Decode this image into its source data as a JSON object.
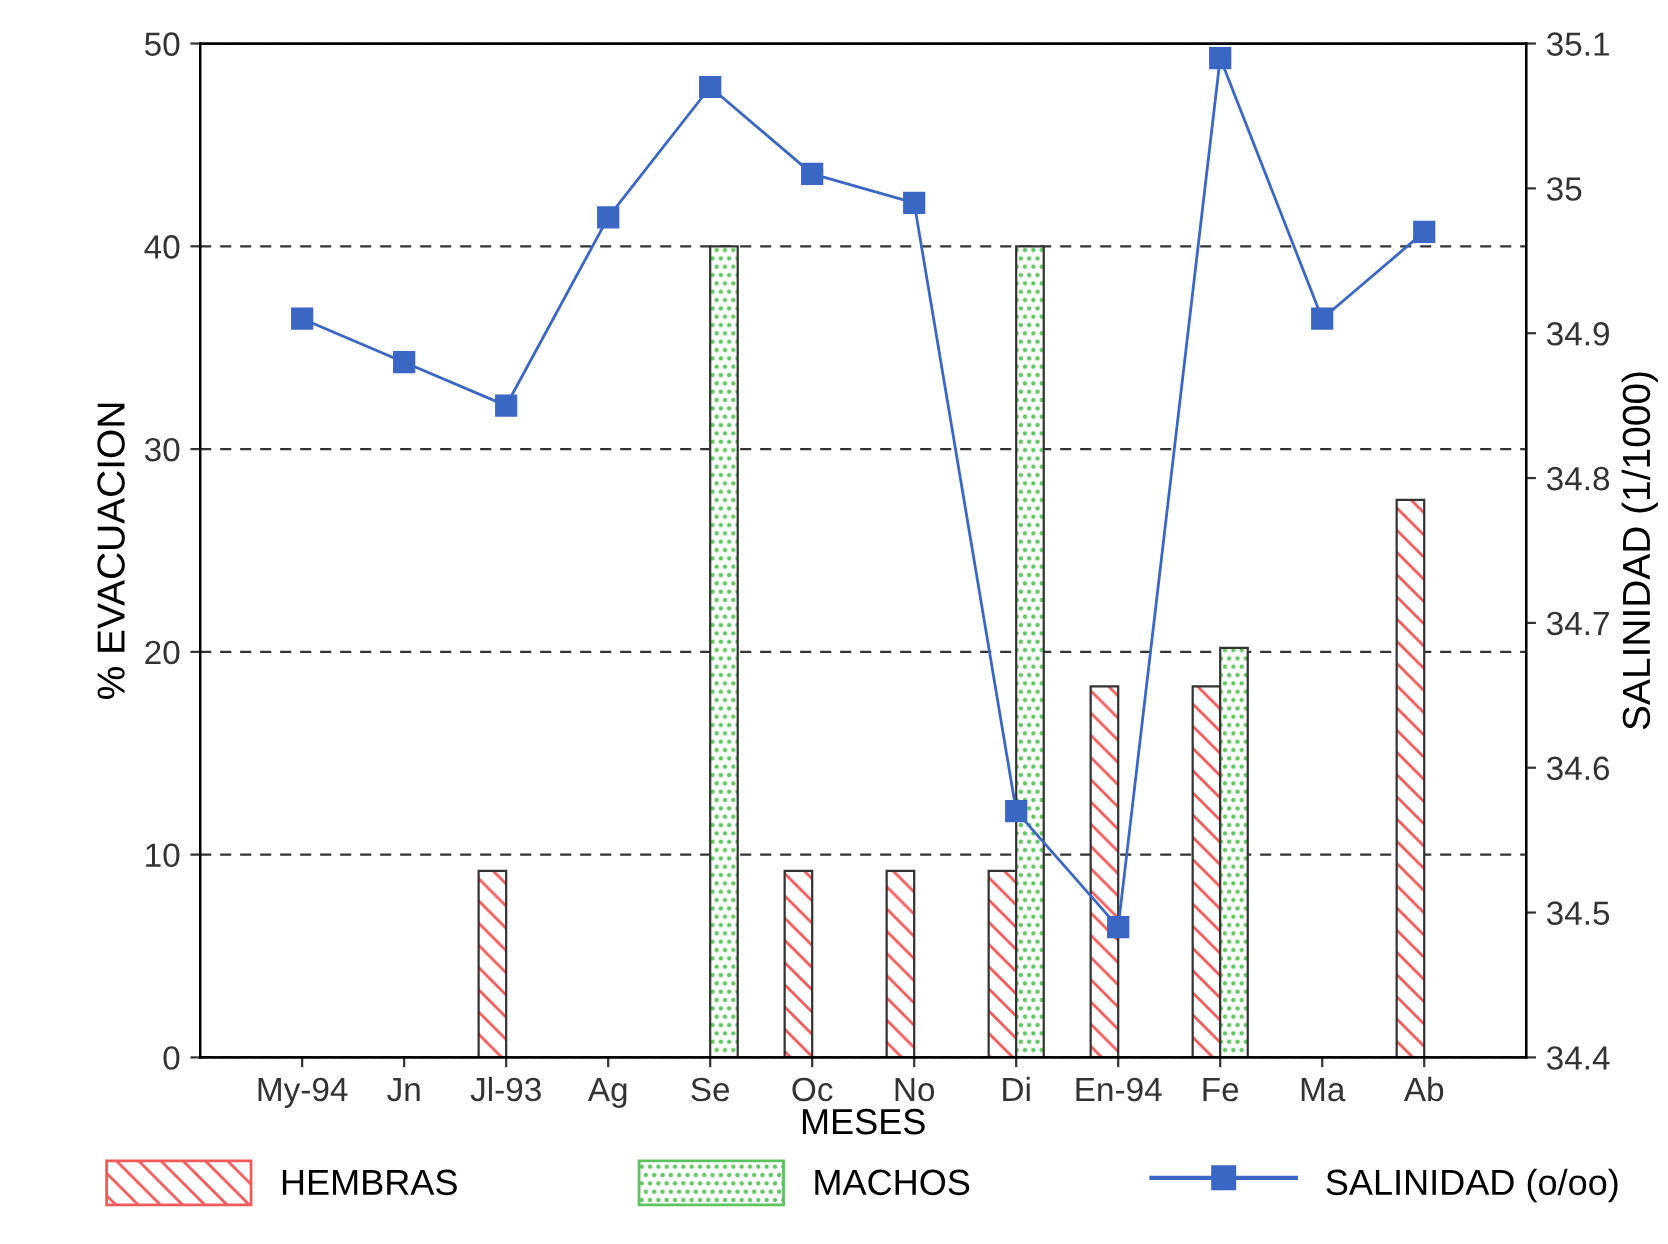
{
  "chart_data": {
    "type": "bar",
    "xlabel": "MESES",
    "ylabel": "% EVACUACION",
    "y2label": "SALINIDAD (1/1000)",
    "categories": [
      "My-94",
      "Jn",
      "Jl-93",
      "Ag",
      "Se",
      "Oc",
      "No",
      "Di",
      "En-94",
      "Fe",
      "Ma",
      "Ab"
    ],
    "series": [
      {
        "name": "HEMBRAS",
        "color": "#f05a5a",
        "values": [
          null,
          null,
          9.2,
          null,
          null,
          9.2,
          9.2,
          9.2,
          18.3,
          18.3,
          null,
          27.5
        ]
      },
      {
        "name": "MACHOS",
        "color": "#5cc45c",
        "values": [
          null,
          null,
          null,
          null,
          40,
          null,
          null,
          40,
          null,
          20.2,
          null,
          null
        ]
      },
      {
        "name": "SALINIDAD (o/oo)",
        "type": "line",
        "axis": "y2",
        "color": "#3a66c4",
        "marker": "square",
        "values": [
          34.91,
          34.88,
          34.85,
          34.98,
          35.07,
          35.01,
          34.99,
          34.57,
          34.49,
          35.09,
          34.91,
          34.97
        ]
      }
    ],
    "ylim": [
      0,
      50
    ],
    "yticks": [
      0,
      10,
      20,
      30,
      40,
      50
    ],
    "y2lim": [
      34.4,
      35.1
    ],
    "y2ticks": [
      {
        "value": 34.4,
        "label": "34.4"
      },
      {
        "value": 34.5,
        "label": "34.5"
      },
      {
        "value": 34.6,
        "label": "34.6"
      },
      {
        "value": 34.7,
        "label": "34.7"
      },
      {
        "value": 34.8,
        "label": "34.8"
      },
      {
        "value": 34.9,
        "label": "34.9"
      },
      {
        "value": 35.0,
        "label": "35"
      },
      {
        "value": 35.1,
        "label": "35.1"
      }
    ],
    "grid": "y",
    "legend": "bottom"
  }
}
